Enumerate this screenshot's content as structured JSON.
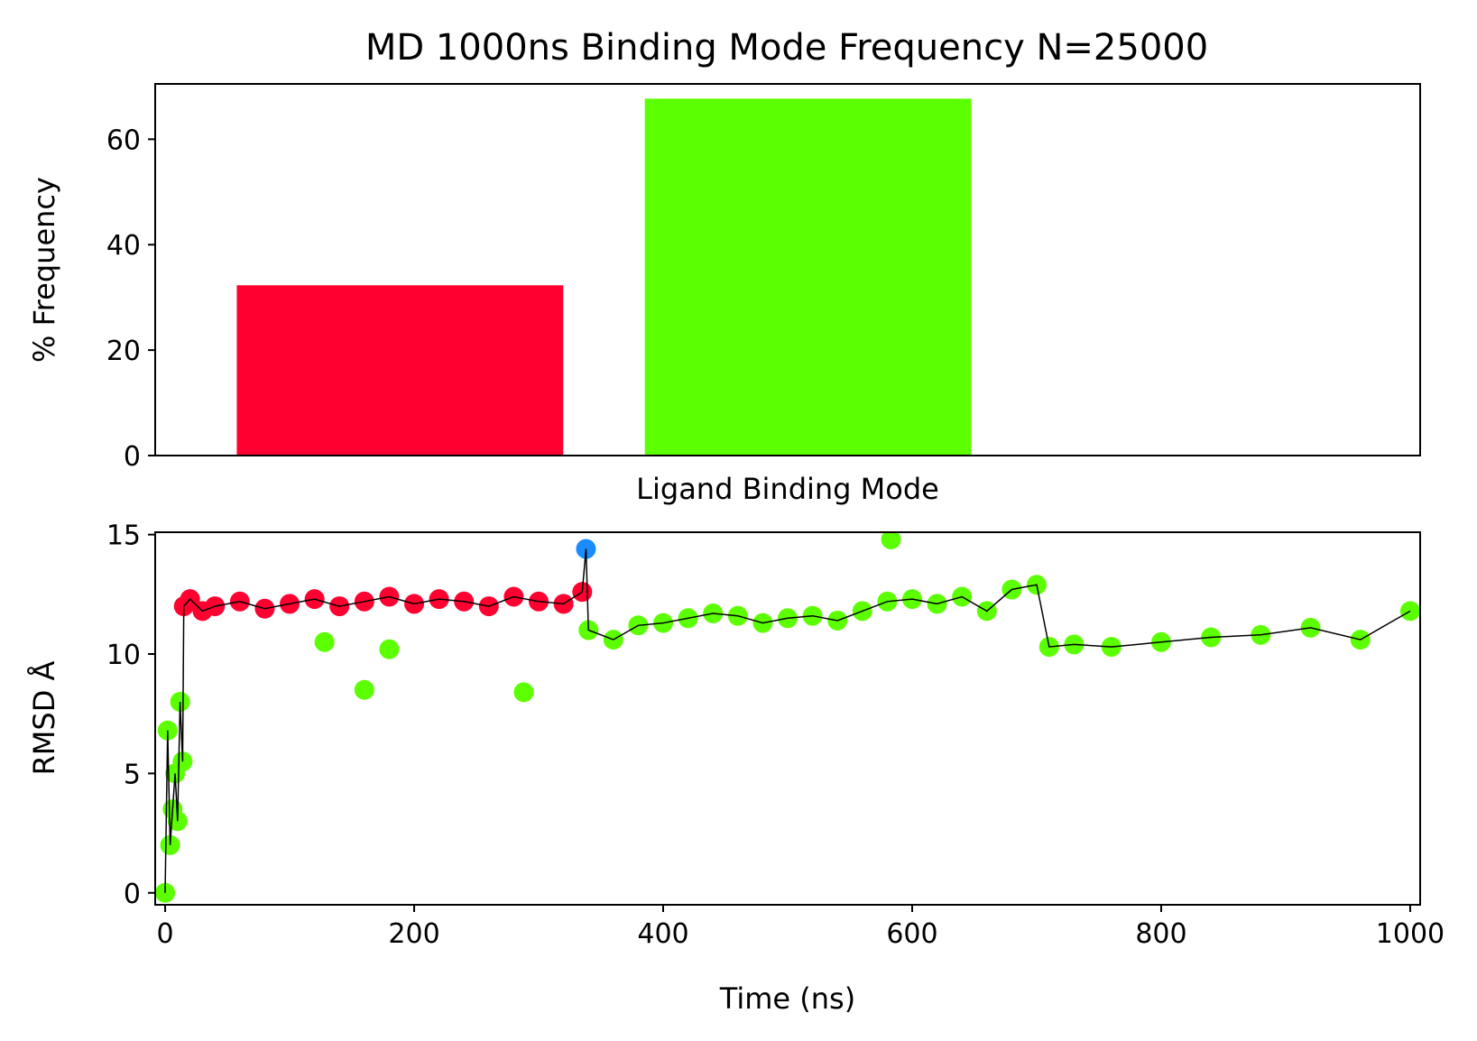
{
  "figure": {
    "title": "MD 1000ns Binding Mode Frequency N=25000"
  },
  "chart_data": [
    {
      "type": "bar",
      "xlabel": "Ligand Binding Mode",
      "ylabel": "% Frequency",
      "categories": [
        "",
        ""
      ],
      "values": [
        32.3,
        67.7
      ],
      "colors": [
        "#ff0030",
        "#5cff00"
      ],
      "xlim": [
        -0.6,
        2.5
      ],
      "ylim": [
        0,
        70.5
      ],
      "yticks": [
        0,
        20,
        40,
        60
      ],
      "grid": false
    },
    {
      "type": "scatter",
      "xlabel": "Time (ns)",
      "ylabel": "RMSD Å",
      "xlim": [
        -8,
        1008
      ],
      "ylim": [
        -0.5,
        15.1
      ],
      "xticks": [
        0,
        200,
        400,
        600,
        800,
        1000
      ],
      "yticks": [
        0,
        5,
        10,
        15
      ],
      "grid": false,
      "mode_colors": {
        "mode_1": "#ff0030",
        "mode_2": "#5cff00",
        "mode_3": "#1a8cff"
      },
      "rmsd_line_color": "#000000",
      "series": [
        {
          "color": "#5cff00",
          "x": [
            0,
            2,
            4,
            6,
            8,
            10,
            12,
            14
          ],
          "y": [
            0.0,
            6.8,
            2.0,
            3.5,
            5.0,
            3.0,
            8.0,
            5.5
          ]
        },
        {
          "color": "#ff0030",
          "x": [
            15,
            20,
            30,
            40,
            60,
            80,
            100,
            120,
            140,
            160,
            180,
            200,
            220,
            240,
            260,
            280,
            300,
            320,
            335
          ],
          "y": [
            12.0,
            12.3,
            11.8,
            12.0,
            12.2,
            11.9,
            12.1,
            12.3,
            12.0,
            12.2,
            12.4,
            12.1,
            12.3,
            12.2,
            12.0,
            12.4,
            12.2,
            12.1,
            12.6
          ]
        },
        {
          "color": "#1a8cff",
          "x": [
            338
          ],
          "y": [
            14.4
          ]
        },
        {
          "color": "#5cff00",
          "x": [
            340,
            360,
            380,
            400,
            420,
            440,
            460,
            480,
            500,
            520,
            540,
            560,
            580,
            600,
            620,
            640,
            660,
            680,
            700,
            710,
            730,
            760,
            800,
            840,
            880,
            920,
            960,
            1000
          ],
          "y": [
            11.0,
            10.6,
            11.2,
            11.3,
            11.5,
            11.7,
            11.6,
            11.3,
            11.5,
            11.6,
            11.4,
            11.8,
            12.2,
            12.3,
            12.1,
            12.4,
            11.8,
            12.7,
            12.9,
            10.3,
            10.4,
            10.3,
            10.5,
            10.7,
            10.8,
            11.1,
            10.6,
            11.8
          ]
        }
      ],
      "outliers": {
        "x": [
          128,
          160,
          180,
          288,
          583
        ],
        "y": [
          10.5,
          8.5,
          10.2,
          8.4,
          14.8
        ]
      }
    }
  ]
}
